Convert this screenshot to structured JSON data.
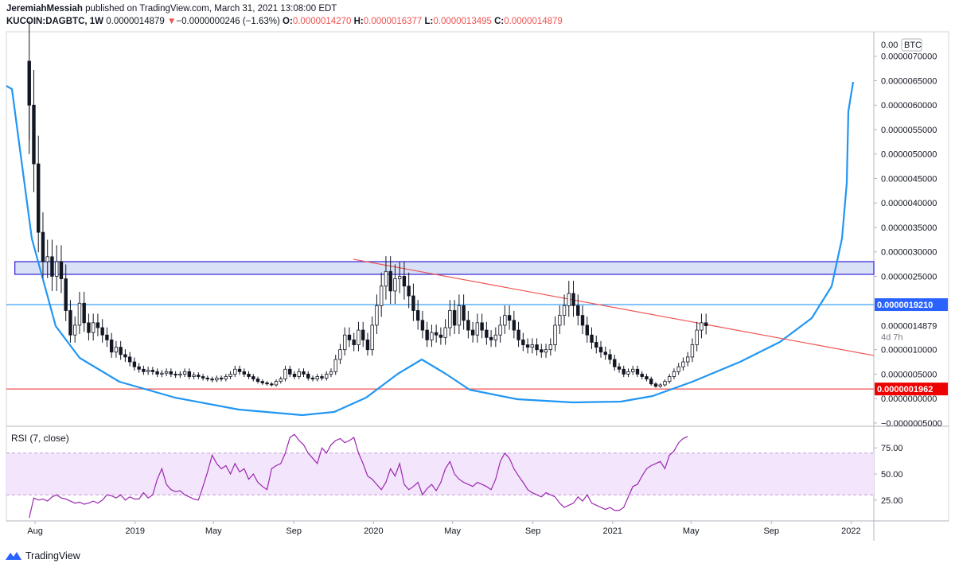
{
  "header": {
    "author": "JeremiahMessiah",
    "published_text": "published on TradingView.com, March 31, 2021 13:08:00 EDT",
    "symbol": "KUCOIN:DAGBTC, 1W",
    "last": "0.0000014879",
    "arrow": "▼",
    "change": "−0.0000000246 (−1.63%)",
    "o_label": "O:",
    "o_value": "0.0000014270",
    "h_label": "H:",
    "h_value": "0.0000016377",
    "l_label": "L:",
    "l_value": "0.0000013495",
    "c_label": "C:",
    "c_value": "0.0000014879"
  },
  "footer": {
    "brand": "TradingView"
  },
  "colors": {
    "up": "#131722",
    "down": "#131722",
    "cup_line": "#2196f3",
    "resistance_line": "#ef5350",
    "support_line": "#ef5350",
    "horizontal_line": "#2196f3",
    "zone_fill": "#d1dcf5",
    "zone_border": "#3f2fd9",
    "rsi_line": "#9c27b0",
    "rsi_band": "#f3e5fc"
  },
  "chart_data": [
    {
      "type": "candlestick",
      "title": "KUCOIN:DAGBTC, 1W",
      "currency_label": "BTC",
      "y_tick_labels": [
        "0.0000070000",
        "0.0000065000",
        "0.0000060000",
        "0.0000055000",
        "0.0000050000",
        "0.0000045000",
        "0.0000040000",
        "0.0000035000",
        "0.0000030000",
        "0.0000025000",
        "0.0000010000",
        "0.0000005000",
        "0.0000000000",
        "−0.0000005000"
      ],
      "y_top_label": "0.00",
      "ylim": [
        -5.5e-07,
        7.5e-06
      ],
      "x_tick_labels": [
        "Aug",
        "2019",
        "May",
        "Sep",
        "2020",
        "May",
        "Sep",
        "2021",
        "May",
        "Sep",
        "2022"
      ],
      "x_range": [
        "2018-06-18",
        "2022-01-20"
      ],
      "price_tags": [
        {
          "label": "0.0000019210",
          "value": 1.921e-06,
          "style": "blue-filled"
        },
        {
          "label": "0.0000014879",
          "value": 1.4879e-06,
          "style": "plain"
        },
        {
          "label": "4d 7h",
          "style": "countdown"
        },
        {
          "label": "0.0000001962",
          "value": 1.962e-07,
          "style": "red-filled"
        }
      ],
      "candles_close": [
        6.0,
        4.8,
        3.4,
        2.8,
        2.9,
        2.5,
        2.8,
        2.45,
        1.8,
        1.3,
        1.5,
        1.95,
        1.55,
        1.35,
        1.55,
        1.45,
        1.3,
        1.2,
        0.95,
        1.05,
        0.9,
        0.85,
        0.75,
        0.65,
        0.6,
        0.55,
        0.58,
        0.55,
        0.5,
        0.52,
        0.55,
        0.5,
        0.48,
        0.5,
        0.55,
        0.45,
        0.48,
        0.45,
        0.42,
        0.4,
        0.38,
        0.42,
        0.4,
        0.45,
        0.5,
        0.6,
        0.55,
        0.5,
        0.45,
        0.4,
        0.35,
        0.32,
        0.3,
        0.28,
        0.35,
        0.4,
        0.6,
        0.5,
        0.45,
        0.55,
        0.5,
        0.42,
        0.4,
        0.45,
        0.42,
        0.5,
        0.55,
        0.8,
        1.0,
        1.3,
        1.2,
        1.1,
        1.4,
        1.2,
        1.0,
        1.5,
        1.9,
        2.3,
        2.6,
        2.2,
        2.45,
        2.5,
        2.3,
        2.1,
        1.8,
        1.6,
        1.4,
        1.2,
        1.35,
        1.3,
        1.25,
        1.45,
        1.8,
        1.5,
        1.9,
        1.6,
        1.4,
        1.3,
        1.55,
        1.4,
        1.25,
        1.2,
        1.3,
        1.5,
        1.7,
        1.6,
        1.4,
        1.2,
        1.1,
        1.05,
        1.1,
        1.0,
        0.95,
        1.0,
        1.1,
        1.5,
        1.7,
        1.9,
        2.15,
        1.9,
        1.7,
        1.5,
        1.3,
        1.15,
        1.05,
        0.95,
        0.9,
        0.8,
        0.65,
        0.6,
        0.5,
        0.55,
        0.6,
        0.5,
        0.45,
        0.4,
        0.3,
        0.25,
        0.28,
        0.35,
        0.45,
        0.55,
        0.65,
        0.75,
        0.85,
        1.1,
        1.4,
        1.55,
        1.49
      ],
      "cup_curve": {
        "start": "2018-06-18",
        "bottom_value": -3.6e-07,
        "right_top_value": 6.6e-06
      },
      "inner_handle_peak": {
        "x": "2020-02",
        "value": 8.7e-07
      },
      "resistance_line": {
        "from": [
          "2019-12",
          2.85e-06
        ],
        "to": [
          "2022-01",
          8.8e-07
        ]
      },
      "zone": {
        "from": "2018-07",
        "low": 2.54e-06,
        "high": 2.8e-06
      }
    },
    {
      "type": "line",
      "title": "RSI (7, close)",
      "y_tick_labels": [
        "75.00",
        "50.00",
        "25.00"
      ],
      "ylim": [
        5,
        95
      ],
      "band": [
        30,
        70
      ],
      "values": [
        8,
        27,
        25,
        26,
        24,
        28,
        30,
        27,
        26,
        24,
        22,
        23,
        21,
        22,
        24,
        22,
        25,
        30,
        29,
        27,
        30,
        25,
        28,
        26,
        26,
        32,
        27,
        30,
        45,
        55,
        40,
        35,
        33,
        34,
        30,
        28,
        26,
        25,
        38,
        52,
        68,
        60,
        55,
        58,
        50,
        60,
        52,
        55,
        45,
        50,
        42,
        38,
        35,
        55,
        58,
        60,
        70,
        85,
        88,
        82,
        78,
        70,
        65,
        60,
        75,
        70,
        78,
        82,
        84,
        80,
        82,
        85,
        70,
        60,
        48,
        45,
        40,
        35,
        42,
        55,
        48,
        60,
        40,
        35,
        38,
        42,
        30,
        36,
        40,
        34,
        42,
        55,
        62,
        50,
        45,
        42,
        40,
        38,
        42,
        40,
        38,
        35,
        45,
        62,
        70,
        65,
        55,
        48,
        42,
        35,
        32,
        30,
        28,
        32,
        30,
        28,
        22,
        18,
        20,
        22,
        28,
        24,
        30,
        22,
        20,
        18,
        16,
        18,
        15,
        15,
        18,
        28,
        38,
        40,
        48,
        55,
        58,
        60,
        62,
        55,
        68,
        72,
        80,
        84,
        86
      ]
    }
  ]
}
